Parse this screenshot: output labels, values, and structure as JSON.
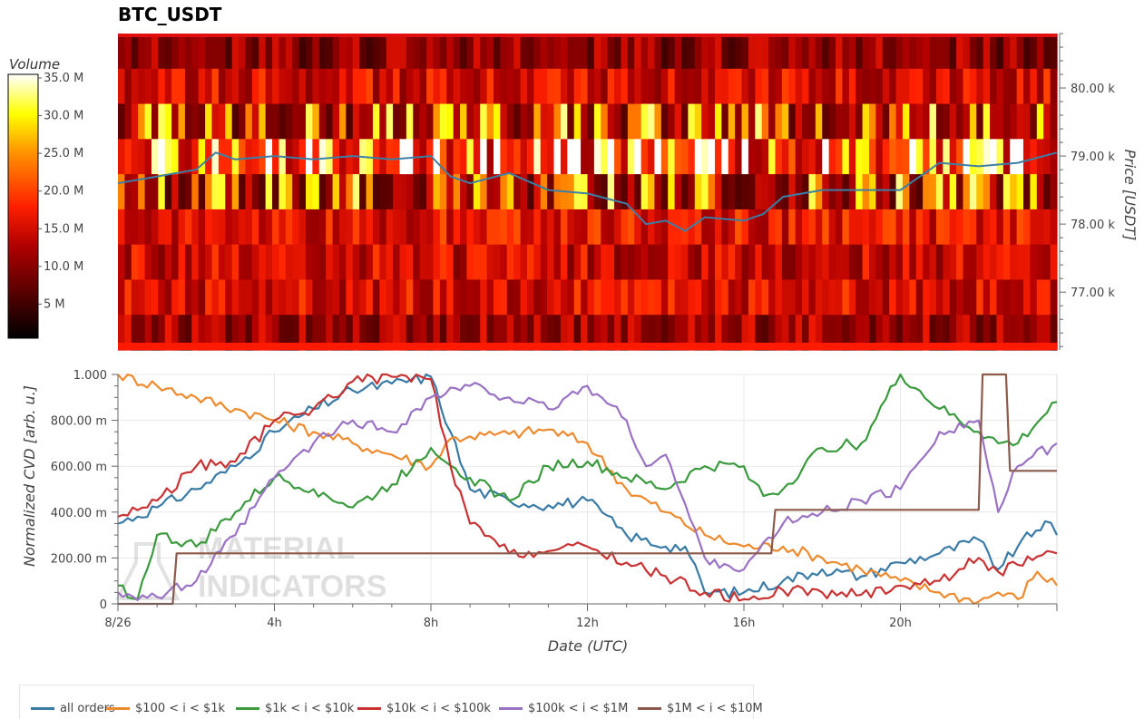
{
  "title": "BTC_USDT",
  "colorbar": {
    "title": "Volume",
    "ticks": [
      "35.0 M",
      "30.0 M",
      "25.0 M",
      "20.0 M",
      "15.0 M",
      "10.0 M",
      "5 M"
    ],
    "tick_values": [
      35,
      30,
      25,
      20,
      15,
      10,
      5
    ],
    "max": 35
  },
  "chart_data": [
    {
      "type": "heatmap",
      "name": "volume_profile",
      "ylabel": "Price [USDT]",
      "y_ticks": [
        "80.00 k",
        "79.00 k",
        "78.00 k",
        "77.00 k"
      ],
      "y_tick_values": [
        80000,
        79000,
        78000,
        77000
      ],
      "ylim": [
        76150,
        80800
      ],
      "price_bins": [
        80500,
        80000,
        79500,
        79000,
        78500,
        78000,
        77500,
        77000,
        76500
      ],
      "price_line_color": "#3c7fa6",
      "price_series": [
        [
          0,
          78600
        ],
        [
          1,
          78700
        ],
        [
          2,
          78800
        ],
        [
          2.5,
          79050
        ],
        [
          3,
          78950
        ],
        [
          4,
          79000
        ],
        [
          5,
          78950
        ],
        [
          6,
          79000
        ],
        [
          7,
          78950
        ],
        [
          8,
          79000
        ],
        [
          8.5,
          78700
        ],
        [
          9,
          78600
        ],
        [
          10,
          78750
        ],
        [
          11,
          78500
        ],
        [
          12,
          78450
        ],
        [
          13,
          78300
        ],
        [
          13.5,
          78000
        ],
        [
          14,
          78050
        ],
        [
          14.5,
          77900
        ],
        [
          15,
          78100
        ],
        [
          16,
          78050
        ],
        [
          16.5,
          78150
        ],
        [
          17,
          78400
        ],
        [
          18,
          78500
        ],
        [
          19,
          78500
        ],
        [
          20,
          78500
        ],
        [
          21,
          78900
        ],
        [
          22,
          78850
        ],
        [
          23,
          78900
        ],
        [
          24,
          79050
        ]
      ]
    },
    {
      "type": "line",
      "name": "normalized_cvd",
      "xlabel": "Date (UTC)",
      "ylabel": "Normalized CVD [arb. u.]",
      "x_ticks": [
        "8/26",
        "4h",
        "8h",
        "12h",
        "16h",
        "20h"
      ],
      "x_tick_values": [
        0,
        4,
        8,
        12,
        16,
        20
      ],
      "xlim": [
        0,
        24
      ],
      "y_ticks": [
        "1.000",
        "800.00 m",
        "600.00 m",
        "400.00 m",
        "200.00 m",
        "0"
      ],
      "y_tick_values": [
        1.0,
        0.8,
        0.6,
        0.4,
        0.2,
        0
      ],
      "ylim": [
        0,
        1
      ],
      "series": [
        {
          "name": "all orders",
          "color": "#3a7ba6",
          "points": [
            [
              0,
              0.35
            ],
            [
              1,
              0.42
            ],
            [
              2,
              0.5
            ],
            [
              3,
              0.6
            ],
            [
              4,
              0.75
            ],
            [
              5,
              0.85
            ],
            [
              6,
              0.93
            ],
            [
              7,
              0.96
            ],
            [
              8,
              0.99
            ],
            [
              8.5,
              0.75
            ],
            [
              9,
              0.5
            ],
            [
              10,
              0.45
            ],
            [
              11,
              0.43
            ],
            [
              12,
              0.45
            ],
            [
              13,
              0.3
            ],
            [
              14,
              0.25
            ],
            [
              14.5,
              0.25
            ],
            [
              15,
              0.05
            ],
            [
              16,
              0.05
            ],
            [
              17,
              0.1
            ],
            [
              18,
              0.15
            ],
            [
              19,
              0.12
            ],
            [
              20,
              0.18
            ],
            [
              21,
              0.22
            ],
            [
              22,
              0.28
            ],
            [
              22.5,
              0.15
            ],
            [
              23,
              0.25
            ],
            [
              23.7,
              0.36
            ],
            [
              24,
              0.3
            ]
          ]
        },
        {
          "name": "$100 < i < $1k",
          "color": "#ee8a2e",
          "points": [
            [
              0,
              1.0
            ],
            [
              1,
              0.95
            ],
            [
              2,
              0.9
            ],
            [
              3,
              0.85
            ],
            [
              4,
              0.8
            ],
            [
              5,
              0.75
            ],
            [
              6,
              0.7
            ],
            [
              7,
              0.65
            ],
            [
              8,
              0.6
            ],
            [
              8.5,
              0.72
            ],
            [
              9,
              0.73
            ],
            [
              10,
              0.74
            ],
            [
              11,
              0.76
            ],
            [
              12,
              0.7
            ],
            [
              13,
              0.5
            ],
            [
              14,
              0.4
            ],
            [
              15,
              0.3
            ],
            [
              16,
              0.25
            ],
            [
              17,
              0.25
            ],
            [
              18,
              0.2
            ],
            [
              19,
              0.15
            ],
            [
              20,
              0.1
            ],
            [
              21,
              0.05
            ],
            [
              22,
              0.01
            ],
            [
              22.5,
              0.05
            ],
            [
              23,
              0.02
            ],
            [
              23.5,
              0.14
            ],
            [
              24,
              0.08
            ]
          ]
        },
        {
          "name": "$1k < i < $10k",
          "color": "#3b9a3e",
          "points": [
            [
              0,
              0.08
            ],
            [
              0.5,
              0.02
            ],
            [
              1,
              0.3
            ],
            [
              2,
              0.25
            ],
            [
              3,
              0.4
            ],
            [
              4,
              0.55
            ],
            [
              5,
              0.5
            ],
            [
              6,
              0.42
            ],
            [
              7,
              0.52
            ],
            [
              8,
              0.68
            ],
            [
              9,
              0.55
            ],
            [
              10,
              0.45
            ],
            [
              11,
              0.6
            ],
            [
              12,
              0.62
            ],
            [
              13,
              0.55
            ],
            [
              14,
              0.5
            ],
            [
              15,
              0.6
            ],
            [
              16,
              0.6
            ],
            [
              16.5,
              0.47
            ],
            [
              17,
              0.5
            ],
            [
              18,
              0.68
            ],
            [
              19,
              0.7
            ],
            [
              20,
              1.0
            ],
            [
              21,
              0.85
            ],
            [
              22,
              0.75
            ],
            [
              22.5,
              0.7
            ],
            [
              23,
              0.7
            ],
            [
              24,
              0.88
            ]
          ]
        },
        {
          "name": "$10k < i < $100k",
          "color": "#c83232",
          "points": [
            [
              0,
              0.38
            ],
            [
              1,
              0.45
            ],
            [
              2,
              0.6
            ],
            [
              3,
              0.62
            ],
            [
              4,
              0.8
            ],
            [
              5,
              0.85
            ],
            [
              6,
              0.97
            ],
            [
              7,
              0.99
            ],
            [
              8,
              0.98
            ],
            [
              8.5,
              0.6
            ],
            [
              9,
              0.35
            ],
            [
              10,
              0.22
            ],
            [
              11,
              0.23
            ],
            [
              12,
              0.25
            ],
            [
              13,
              0.18
            ],
            [
              14,
              0.12
            ],
            [
              15,
              0.05
            ],
            [
              16,
              0.02
            ],
            [
              17,
              0.06
            ],
            [
              18,
              0.05
            ],
            [
              19,
              0.04
            ],
            [
              20,
              0.08
            ],
            [
              21,
              0.1
            ],
            [
              22,
              0.2
            ],
            [
              22.5,
              0.14
            ],
            [
              23,
              0.17
            ],
            [
              24,
              0.22
            ]
          ]
        },
        {
          "name": "$100k < i < $1M",
          "color": "#9a72c3",
          "points": [
            [
              0,
              0.05
            ],
            [
              1,
              0.03
            ],
            [
              2,
              0.1
            ],
            [
              3,
              0.3
            ],
            [
              4,
              0.55
            ],
            [
              5,
              0.7
            ],
            [
              6,
              0.8
            ],
            [
              7,
              0.75
            ],
            [
              8,
              0.9
            ],
            [
              9,
              0.95
            ],
            [
              10,
              0.9
            ],
            [
              11,
              0.85
            ],
            [
              12,
              0.95
            ],
            [
              13,
              0.8
            ],
            [
              13.5,
              0.6
            ],
            [
              14,
              0.65
            ],
            [
              15,
              0.2
            ],
            [
              16,
              0.15
            ],
            [
              17,
              0.35
            ],
            [
              18,
              0.4
            ],
            [
              19,
              0.45
            ],
            [
              20,
              0.5
            ],
            [
              21,
              0.75
            ],
            [
              22,
              0.8
            ],
            [
              22.5,
              0.4
            ],
            [
              23,
              0.6
            ],
            [
              24,
              0.7
            ]
          ]
        },
        {
          "name": "$1M < i < $10M",
          "color": "#8c5a4a",
          "points": [
            [
              0,
              0.0
            ],
            [
              1.4,
              0.0
            ],
            [
              1.5,
              0.22
            ],
            [
              16.7,
              0.22
            ],
            [
              16.8,
              0.41
            ],
            [
              22,
              0.41
            ],
            [
              22.1,
              1.0
            ],
            [
              22.7,
              1.0
            ],
            [
              22.8,
              0.58
            ],
            [
              24,
              0.58
            ]
          ]
        }
      ]
    }
  ],
  "legend": {
    "items": [
      "all orders",
      "$100 < i < $1k",
      "$1k < i < $10k",
      "$10k < i < $100k",
      "$100k < i < $1M",
      "$1M < i < $10M"
    ],
    "colors": [
      "#3a7ba6",
      "#ee8a2e",
      "#3b9a3e",
      "#c83232",
      "#9a72c3",
      "#8c5a4a"
    ]
  },
  "watermark": "MATERIAL INDICATORS"
}
